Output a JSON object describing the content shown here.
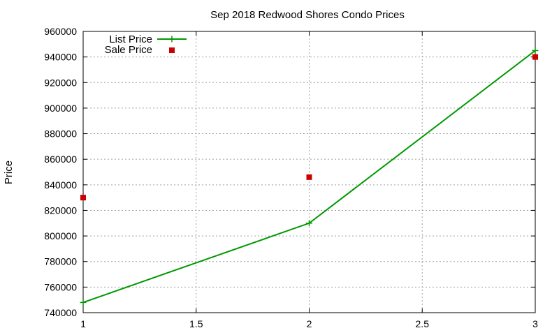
{
  "chart_data": {
    "type": "line",
    "title": "Sep 2018 Redwood Shores Condo Prices",
    "xlabel": "",
    "ylabel": "Price",
    "xlim": [
      1,
      3
    ],
    "ylim": [
      740000,
      960000
    ],
    "x_ticks": [
      "1",
      "1.5",
      "2",
      "2.5",
      "3"
    ],
    "x_tick_values": [
      1,
      1.5,
      2,
      2.5,
      3
    ],
    "y_ticks": [
      "740000",
      "760000",
      "780000",
      "800000",
      "820000",
      "840000",
      "860000",
      "880000",
      "900000",
      "920000",
      "940000",
      "960000"
    ],
    "y_tick_values": [
      740000,
      760000,
      780000,
      800000,
      820000,
      840000,
      860000,
      880000,
      900000,
      920000,
      940000,
      960000
    ],
    "grid": true,
    "legend_position": "top-left",
    "series": [
      {
        "name": "List Price",
        "style": "line-with-plus-markers",
        "color": "#009900",
        "x": [
          1,
          2,
          3
        ],
        "values": [
          748000,
          810000,
          945000
        ]
      },
      {
        "name": "Sale Price",
        "style": "square-markers",
        "color": "#cc0000",
        "x": [
          1,
          2,
          3
        ],
        "values": [
          830000,
          846000,
          940000
        ]
      }
    ]
  }
}
